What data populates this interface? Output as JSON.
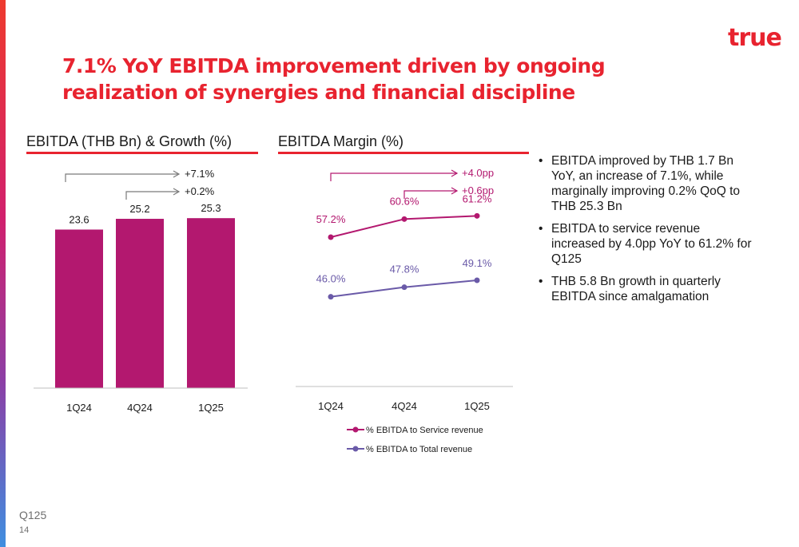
{
  "brand": {
    "logo_text": "true",
    "color": "#e8232f"
  },
  "title": "7.1% YoY EBITDA improvement driven by ongoing realization of synergies and financial discipline",
  "left_section": {
    "heading": "EBITDA (THB Bn) & Growth (%)"
  },
  "middle_section": {
    "heading": "EBITDA Margin (%)"
  },
  "chart_data": [
    {
      "type": "bar",
      "title": "EBITDA (THB Bn) & Growth (%)",
      "categories": [
        "1Q24",
        "4Q24",
        "1Q25"
      ],
      "values": [
        23.6,
        25.2,
        25.3
      ],
      "data_labels": [
        "23.6",
        "25.2",
        "25.3"
      ],
      "color": "#b3186f",
      "ylim": [
        0,
        34
      ],
      "grid": false,
      "annotations": [
        {
          "label": "+7.1%",
          "from": "1Q24",
          "to": "1Q25",
          "color": "#7a7a7a"
        },
        {
          "label": "+0.2%",
          "from": "4Q24",
          "to": "1Q25",
          "color": "#7a7a7a"
        }
      ]
    },
    {
      "type": "line",
      "title": "EBITDA Margin (%)",
      "categories": [
        "1Q24",
        "4Q24",
        "1Q25"
      ],
      "ylim": [
        35,
        68
      ],
      "grid": false,
      "legend": "bottom",
      "series": [
        {
          "name": "% EBITDA to Service revenue",
          "values": [
            57.2,
            60.6,
            61.2
          ],
          "labels": [
            "57.2%",
            "60.6%",
            "61.2%"
          ],
          "color": "#b3186f"
        },
        {
          "name": "% EBITDA to Total revenue",
          "values": [
            46.0,
            47.8,
            49.1
          ],
          "labels": [
            "46.0%",
            "47.8%",
            "49.1%"
          ],
          "color": "#6a5aa8"
        }
      ],
      "annotations": [
        {
          "label": "+4.0pp",
          "from": "1Q24",
          "to": "1Q25",
          "color": "#b3186f"
        },
        {
          "label": "+0.6pp",
          "from": "4Q24",
          "to": "1Q25",
          "color": "#b3186f"
        }
      ]
    }
  ],
  "bullets": [
    "EBITDA improved by THB 1.7 Bn YoY, an increase of 7.1%, while marginally improving 0.2% QoQ to THB 25.3 Bn",
    "EBITDA to service revenue increased by 4.0pp YoY to 61.2% for Q125",
    "THB 5.8 Bn growth in quarterly EBITDA since amalgamation"
  ],
  "footer": {
    "quarter": "Q125",
    "page_number": "14"
  }
}
